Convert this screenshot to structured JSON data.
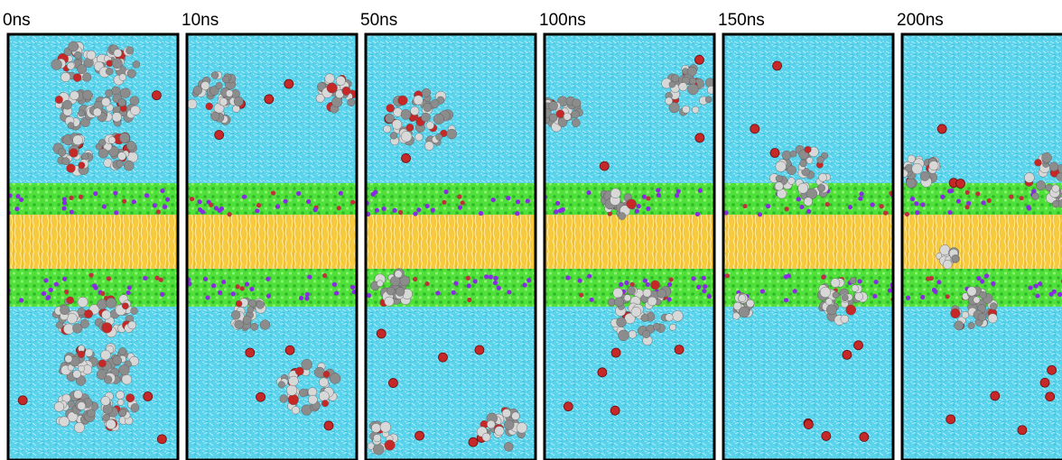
{
  "panels": [
    {
      "label": "0ns"
    },
    {
      "label": "10ns"
    },
    {
      "label": "50ns"
    },
    {
      "label": "100ns"
    },
    {
      "label": "150ns"
    },
    {
      "label": "200ns"
    }
  ]
}
